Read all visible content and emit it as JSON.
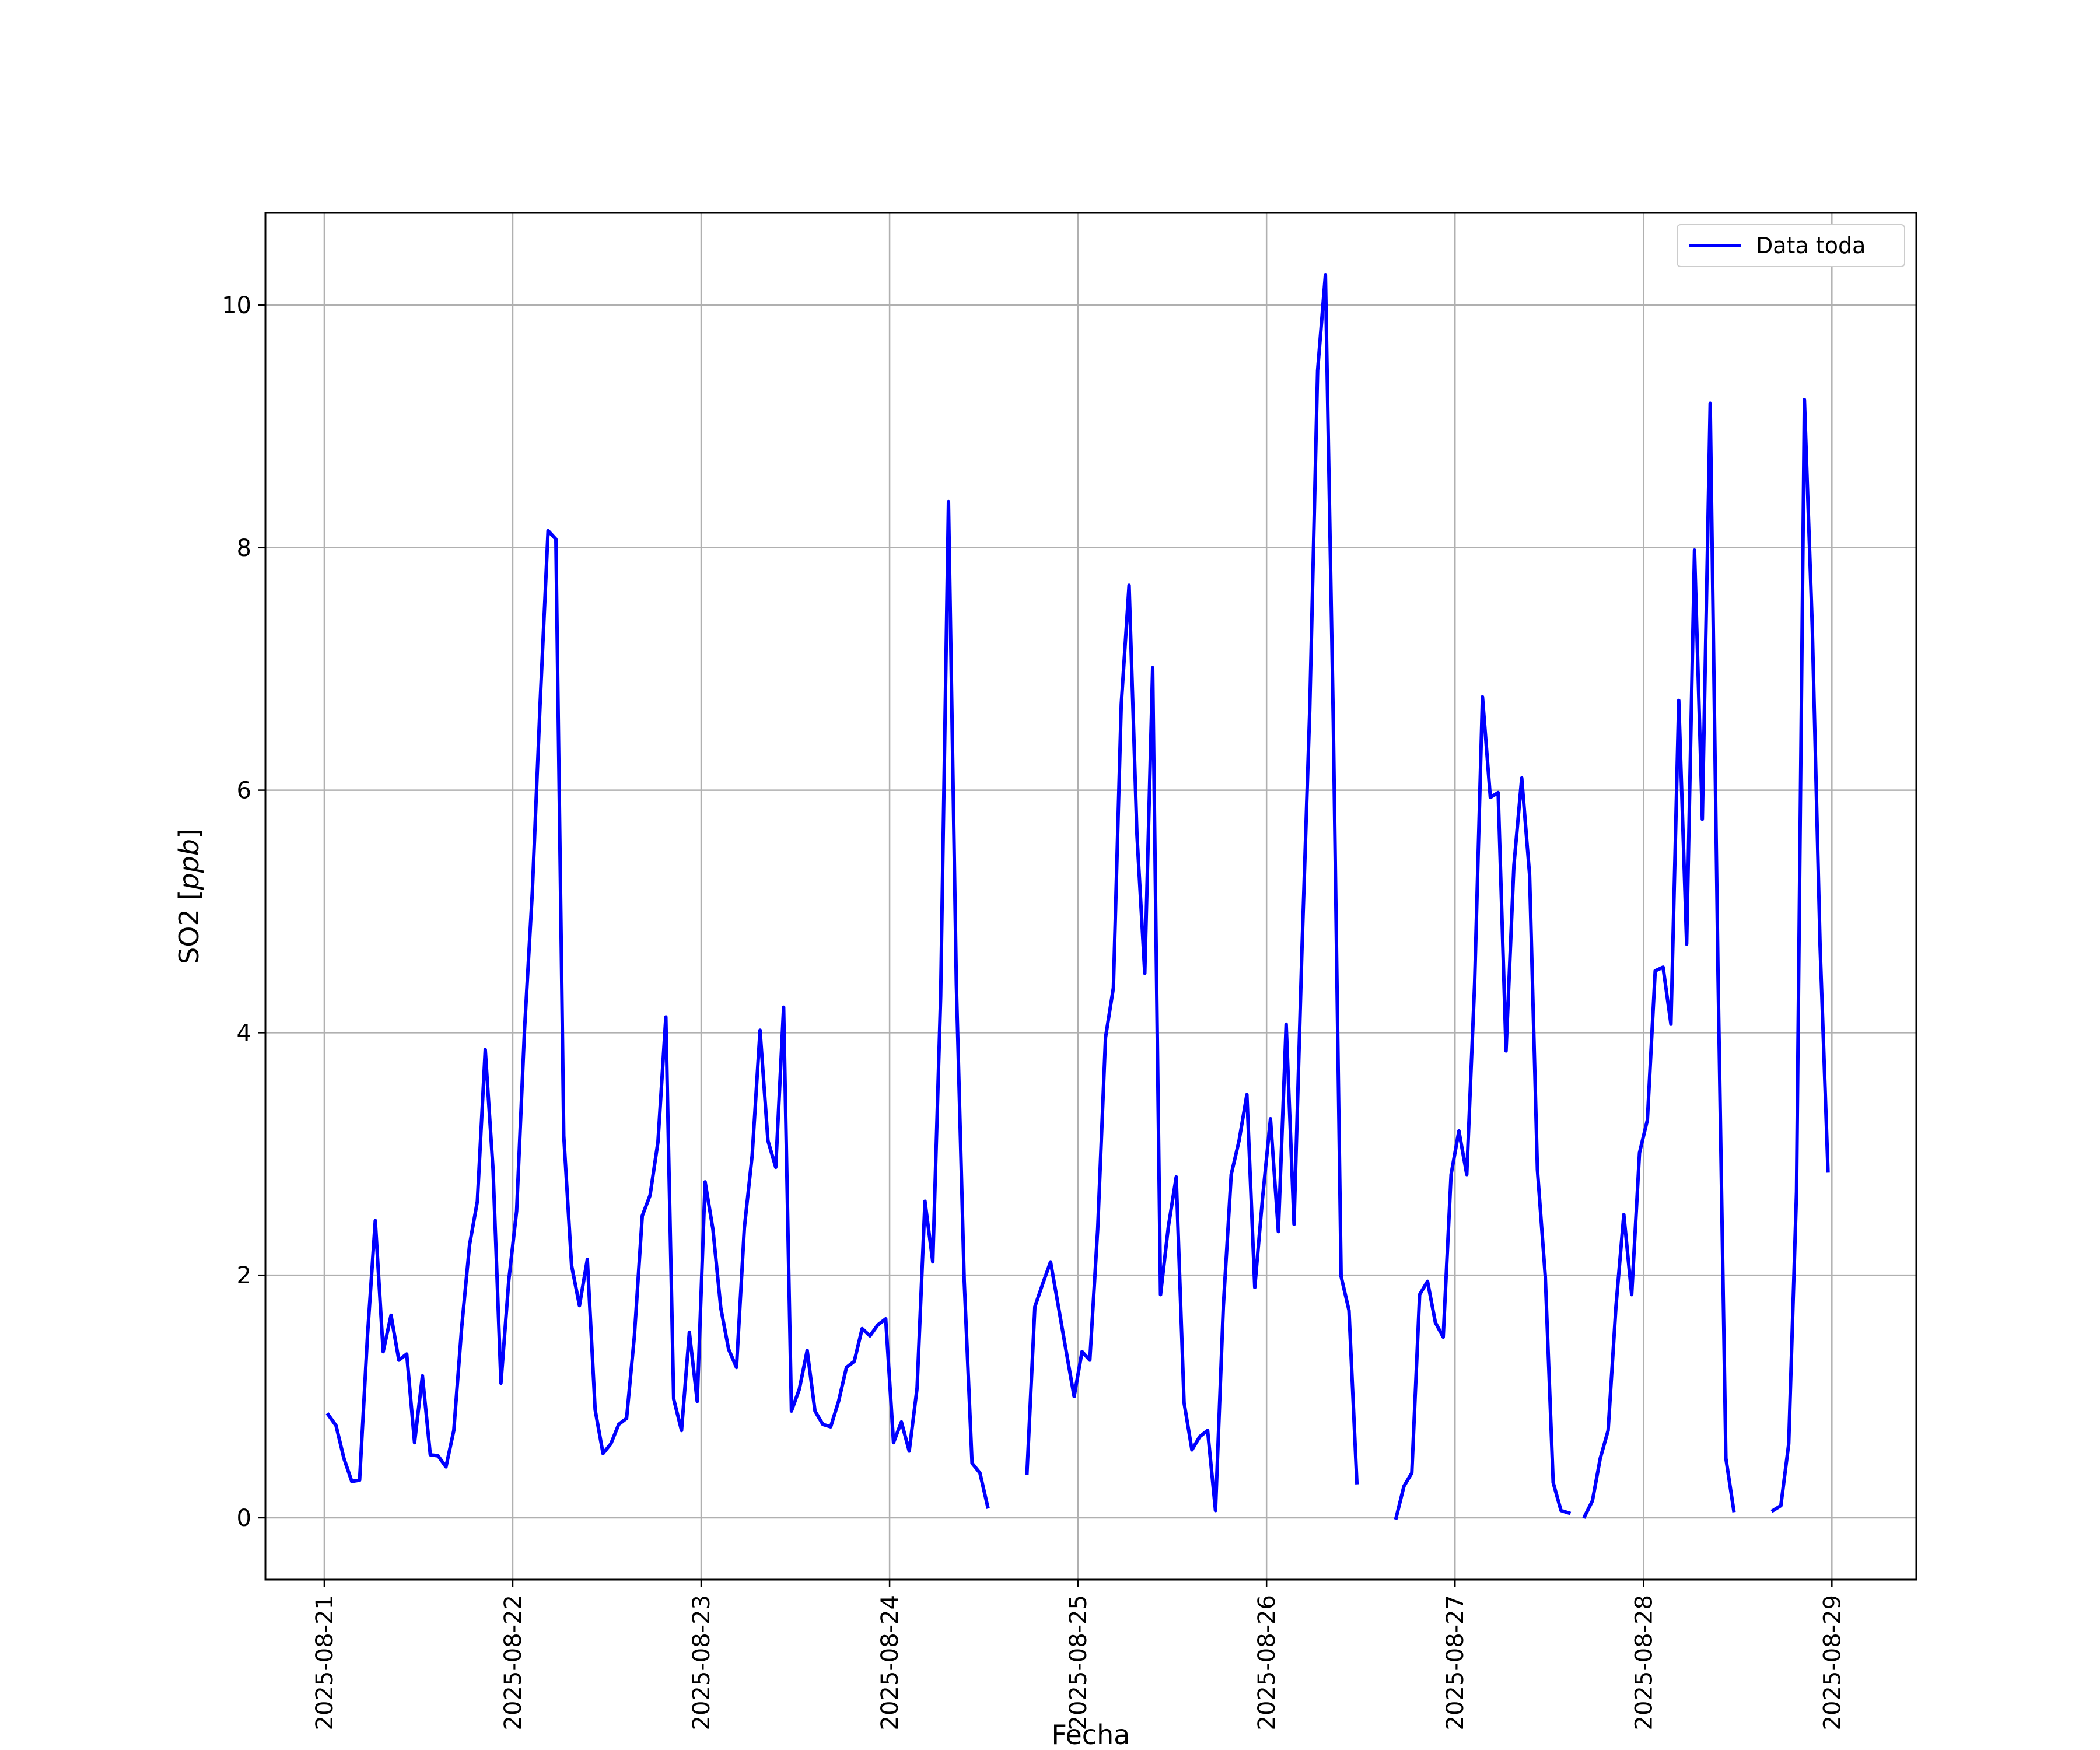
{
  "chart_data": {
    "type": "line",
    "title": "",
    "xlabel": "Fecha",
    "ylabel": "SO2 [ppb]",
    "ylabel_main": "SO2",
    "ylabel_unit": "ppb",
    "x_tick_labels": [
      "2025-08-21",
      "2025-08-22",
      "2025-08-23",
      "2025-08-24",
      "2025-08-25",
      "2025-08-26",
      "2025-08-27",
      "2025-08-28",
      "2025-08-29"
    ],
    "y_ticks": [
      0,
      2,
      4,
      6,
      8,
      10
    ],
    "xlim": [
      "2025-08-20 16:30",
      "2025-08-29 10:45"
    ],
    "ylim": [
      -0.51,
      10.76
    ],
    "grid": true,
    "legend_position": "top-right",
    "series": [
      {
        "name": "Data toda",
        "color": "#0000ff",
        "points": [
          [
            "2025-08-21 00:30",
            0.85
          ],
          [
            "2025-08-21 01:30",
            0.76
          ],
          [
            "2025-08-21 02:30",
            0.49
          ],
          [
            "2025-08-21 03:30",
            0.3
          ],
          [
            "2025-08-21 04:30",
            0.31
          ],
          [
            "2025-08-21 05:30",
            1.5
          ],
          [
            "2025-08-21 06:30",
            2.45
          ],
          [
            "2025-08-21 07:30",
            1.37
          ],
          [
            "2025-08-21 08:30",
            1.67
          ],
          [
            "2025-08-21 09:30",
            1.3
          ],
          [
            "2025-08-21 10:30",
            1.35
          ],
          [
            "2025-08-21 11:30",
            0.62
          ],
          [
            "2025-08-21 12:30",
            1.17
          ],
          [
            "2025-08-21 13:30",
            0.52
          ],
          [
            "2025-08-21 14:30",
            0.51
          ],
          [
            "2025-08-21 15:30",
            0.42
          ],
          [
            "2025-08-21 16:30",
            0.72
          ],
          [
            "2025-08-21 17:30",
            1.57
          ],
          [
            "2025-08-21 18:30",
            2.25
          ],
          [
            "2025-08-21 19:30",
            2.61
          ],
          [
            "2025-08-21 20:30",
            3.86
          ],
          [
            "2025-08-21 21:30",
            2.87
          ],
          [
            "2025-08-21 22:30",
            1.11
          ],
          [
            "2025-08-21 23:30",
            1.96
          ],
          [
            "2025-08-22 00:30",
            2.53
          ],
          [
            "2025-08-22 01:30",
            4.02
          ],
          [
            "2025-08-22 02:30",
            5.16
          ],
          [
            "2025-08-22 03:30",
            6.73
          ],
          [
            "2025-08-22 04:30",
            8.14
          ],
          [
            "2025-08-22 05:30",
            8.07
          ],
          [
            "2025-08-22 06:30",
            3.15
          ],
          [
            "2025-08-22 07:30",
            2.08
          ],
          [
            "2025-08-22 08:30",
            1.75
          ],
          [
            "2025-08-22 09:30",
            2.13
          ],
          [
            "2025-08-22 10:30",
            0.89
          ],
          [
            "2025-08-22 11:30",
            0.53
          ],
          [
            "2025-08-22 12:30",
            0.61
          ],
          [
            "2025-08-22 13:30",
            0.77
          ],
          [
            "2025-08-22 14:30",
            0.82
          ],
          [
            "2025-08-22 15:30",
            1.5
          ],
          [
            "2025-08-22 16:30",
            2.49
          ],
          [
            "2025-08-22 17:30",
            2.66
          ],
          [
            "2025-08-22 18:30",
            3.1
          ],
          [
            "2025-08-22 19:30",
            4.13
          ],
          [
            "2025-08-22 20:30",
            0.98
          ],
          [
            "2025-08-22 21:30",
            0.72
          ],
          [
            "2025-08-22 22:30",
            1.53
          ],
          [
            "2025-08-22 23:30",
            0.96
          ],
          [
            "2025-08-23 00:30",
            2.77
          ],
          [
            "2025-08-23 01:30",
            2.38
          ],
          [
            "2025-08-23 02:30",
            1.73
          ],
          [
            "2025-08-23 03:30",
            1.39
          ],
          [
            "2025-08-23 04:30",
            1.24
          ],
          [
            "2025-08-23 05:30",
            2.39
          ],
          [
            "2025-08-23 06:30",
            2.99
          ],
          [
            "2025-08-23 07:30",
            4.02
          ],
          [
            "2025-08-23 08:30",
            3.11
          ],
          [
            "2025-08-23 09:30",
            2.89
          ],
          [
            "2025-08-23 10:30",
            4.21
          ],
          [
            "2025-08-23 11:30",
            0.88
          ],
          [
            "2025-08-23 12:30",
            1.06
          ],
          [
            "2025-08-23 13:30",
            1.38
          ],
          [
            "2025-08-23 14:30",
            0.88
          ],
          [
            "2025-08-23 15:30",
            0.77
          ],
          [
            "2025-08-23 16:30",
            0.75
          ],
          [
            "2025-08-23 17:30",
            0.96
          ],
          [
            "2025-08-23 18:30",
            1.24
          ],
          [
            "2025-08-23 19:30",
            1.29
          ],
          [
            "2025-08-23 20:30",
            1.56
          ],
          [
            "2025-08-23 21:30",
            1.5
          ],
          [
            "2025-08-23 22:30",
            1.59
          ],
          [
            "2025-08-23 23:30",
            1.64
          ],
          [
            "2025-08-24 00:30",
            0.62
          ],
          [
            "2025-08-24 01:30",
            0.79
          ],
          [
            "2025-08-24 02:30",
            0.55
          ],
          [
            "2025-08-24 03:30",
            1.07
          ],
          [
            "2025-08-24 04:30",
            2.61
          ],
          [
            "2025-08-24 05:30",
            2.11
          ],
          [
            "2025-08-24 06:30",
            4.3
          ],
          [
            "2025-08-24 07:30",
            8.38
          ],
          [
            "2025-08-24 08:30",
            4.4
          ],
          [
            "2025-08-24 09:30",
            1.95
          ],
          [
            "2025-08-24 10:30",
            0.45
          ],
          [
            "2025-08-24 11:30",
            0.37
          ],
          [
            "2025-08-24 12:30",
            0.09
          ],
          [
            "2025-08-24 13:30",
            null
          ],
          [
            "2025-08-24 14:30",
            null
          ],
          [
            "2025-08-24 15:30",
            null
          ],
          [
            "2025-08-24 16:30",
            null
          ],
          [
            "2025-08-24 17:30",
            0.37
          ],
          [
            "2025-08-24 18:30",
            1.74
          ],
          [
            "2025-08-24 19:30",
            1.93
          ],
          [
            "2025-08-24 20:30",
            2.11
          ],
          [
            "2025-08-24 21:30",
            1.74
          ],
          [
            "2025-08-24 22:30",
            1.37
          ],
          [
            "2025-08-24 23:30",
            1.0
          ],
          [
            "2025-08-25 00:30",
            1.37
          ],
          [
            "2025-08-25 01:30",
            1.3
          ],
          [
            "2025-08-25 02:30",
            2.38
          ],
          [
            "2025-08-25 03:30",
            3.96
          ],
          [
            "2025-08-25 04:30",
            4.37
          ],
          [
            "2025-08-25 05:30",
            6.71
          ],
          [
            "2025-08-25 06:30",
            7.69
          ],
          [
            "2025-08-25 07:30",
            5.63
          ],
          [
            "2025-08-25 08:30",
            4.49
          ],
          [
            "2025-08-25 09:30",
            7.01
          ],
          [
            "2025-08-25 10:30",
            1.84
          ],
          [
            "2025-08-25 11:30",
            2.4
          ],
          [
            "2025-08-25 12:30",
            2.81
          ],
          [
            "2025-08-25 13:30",
            0.95
          ],
          [
            "2025-08-25 14:30",
            0.56
          ],
          [
            "2025-08-25 15:30",
            0.67
          ],
          [
            "2025-08-25 16:30",
            0.72
          ],
          [
            "2025-08-25 17:30",
            0.06
          ],
          [
            "2025-08-25 18:30",
            1.74
          ],
          [
            "2025-08-25 19:30",
            2.83
          ],
          [
            "2025-08-25 20:30",
            3.11
          ],
          [
            "2025-08-25 21:30",
            3.49
          ],
          [
            "2025-08-25 22:30",
            1.9
          ],
          [
            "2025-08-25 23:30",
            2.64
          ],
          [
            "2025-08-26 00:30",
            3.29
          ],
          [
            "2025-08-26 01:30",
            2.36
          ],
          [
            "2025-08-26 02:30",
            4.07
          ],
          [
            "2025-08-26 03:30",
            2.42
          ],
          [
            "2025-08-26 04:30",
            4.66
          ],
          [
            "2025-08-26 05:30",
            6.66
          ],
          [
            "2025-08-26 06:30",
            9.46
          ],
          [
            "2025-08-26 07:30",
            10.25
          ],
          [
            "2025-08-26 08:30",
            6.56
          ],
          [
            "2025-08-26 09:30",
            1.99
          ],
          [
            "2025-08-26 10:30",
            1.71
          ],
          [
            "2025-08-26 11:30",
            0.29
          ],
          [
            "2025-08-26 12:30",
            null
          ],
          [
            "2025-08-26 13:30",
            null
          ],
          [
            "2025-08-26 14:30",
            null
          ],
          [
            "2025-08-26 15:30",
            null
          ],
          [
            "2025-08-26 16:30",
            0.0
          ],
          [
            "2025-08-26 17:30",
            0.26
          ],
          [
            "2025-08-26 18:30",
            0.37
          ],
          [
            "2025-08-26 19:30",
            1.84
          ],
          [
            "2025-08-26 20:30",
            1.95
          ],
          [
            "2025-08-26 21:30",
            1.61
          ],
          [
            "2025-08-26 22:30",
            1.49
          ],
          [
            "2025-08-26 23:30",
            2.83
          ],
          [
            "2025-08-27 00:30",
            3.19
          ],
          [
            "2025-08-27 01:30",
            2.83
          ],
          [
            "2025-08-27 02:30",
            4.41
          ],
          [
            "2025-08-27 03:30",
            6.77
          ],
          [
            "2025-08-27 04:30",
            5.94
          ],
          [
            "2025-08-27 05:30",
            5.98
          ],
          [
            "2025-08-27 06:30",
            3.85
          ],
          [
            "2025-08-27 07:30",
            5.38
          ],
          [
            "2025-08-27 08:30",
            6.1
          ],
          [
            "2025-08-27 09:30",
            5.3
          ],
          [
            "2025-08-27 10:30",
            2.87
          ],
          [
            "2025-08-27 11:30",
            1.99
          ],
          [
            "2025-08-27 12:30",
            0.29
          ],
          [
            "2025-08-27 13:30",
            0.06
          ],
          [
            "2025-08-27 14:30",
            0.04
          ],
          [
            "2025-08-27 15:30",
            null
          ],
          [
            "2025-08-27 16:30",
            0.01
          ],
          [
            "2025-08-27 17:30",
            0.14
          ],
          [
            "2025-08-27 18:30",
            0.49
          ],
          [
            "2025-08-27 19:30",
            0.72
          ],
          [
            "2025-08-27 20:30",
            1.74
          ],
          [
            "2025-08-27 21:30",
            2.5
          ],
          [
            "2025-08-27 22:30",
            1.84
          ],
          [
            "2025-08-27 23:30",
            3.01
          ],
          [
            "2025-08-28 00:30",
            3.28
          ],
          [
            "2025-08-28 01:30",
            4.51
          ],
          [
            "2025-08-28 02:30",
            4.54
          ],
          [
            "2025-08-28 03:30",
            4.07
          ],
          [
            "2025-08-28 04:30",
            6.74
          ],
          [
            "2025-08-28 05:30",
            4.73
          ],
          [
            "2025-08-28 06:30",
            7.98
          ],
          [
            "2025-08-28 07:30",
            5.76
          ],
          [
            "2025-08-28 08:30",
            9.19
          ],
          [
            "2025-08-28 09:30",
            4.48
          ],
          [
            "2025-08-28 10:30",
            0.49
          ],
          [
            "2025-08-28 11:30",
            0.06
          ],
          [
            "2025-08-28 12:30",
            null
          ],
          [
            "2025-08-28 13:30",
            null
          ],
          [
            "2025-08-28 14:30",
            null
          ],
          [
            "2025-08-28 15:30",
            null
          ],
          [
            "2025-08-28 16:30",
            0.06
          ],
          [
            "2025-08-28 17:30",
            0.1
          ],
          [
            "2025-08-28 18:30",
            0.61
          ],
          [
            "2025-08-28 19:30",
            2.69
          ],
          [
            "2025-08-28 20:30",
            9.22
          ],
          [
            "2025-08-28 21:30",
            7.34
          ],
          [
            "2025-08-28 22:30",
            4.71
          ],
          [
            "2025-08-28 23:30",
            2.86
          ]
        ]
      }
    ]
  }
}
